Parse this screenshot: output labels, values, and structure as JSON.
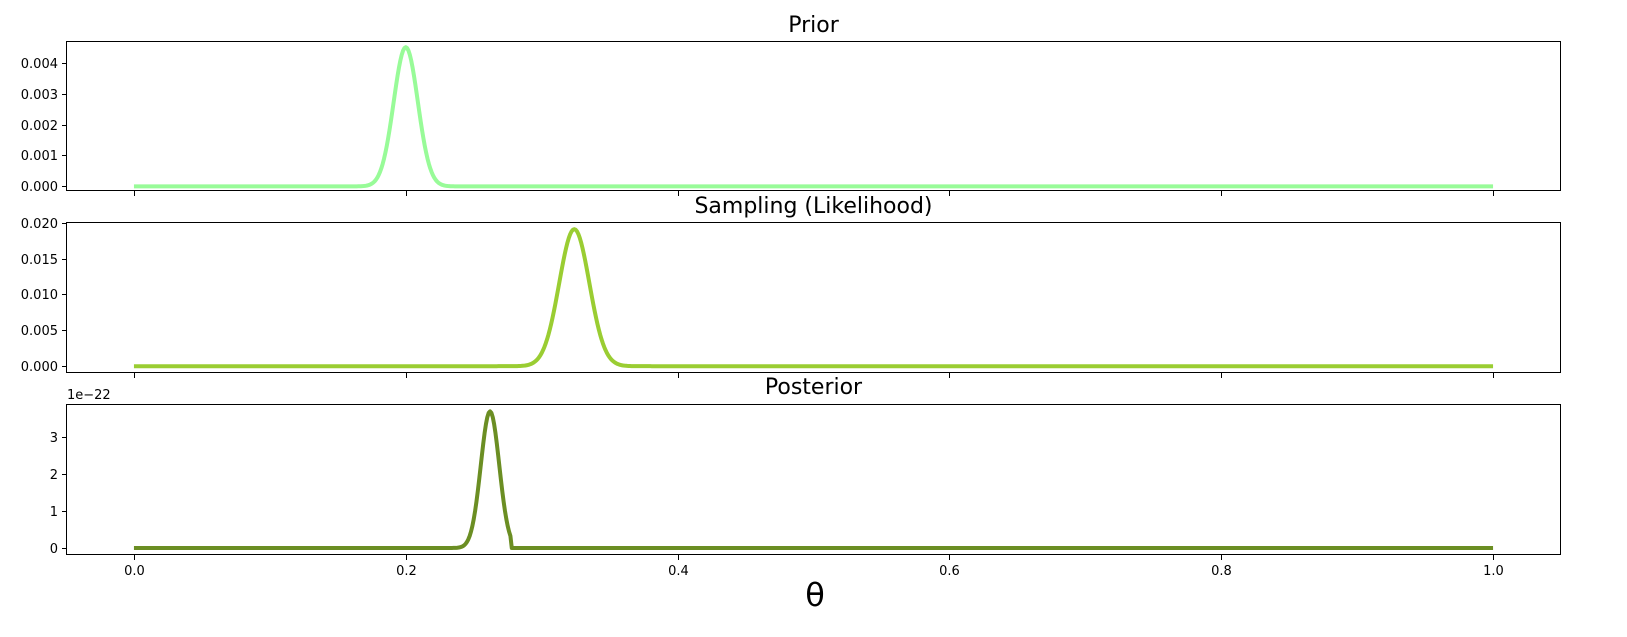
{
  "chart_data": [
    {
      "type": "line",
      "title": "Prior",
      "xlabel": "",
      "ylabel": "",
      "xlim": [
        -0.05,
        1.05
      ],
      "ylim": [
        -0.00015,
        0.0047
      ],
      "xticks": [
        0.0,
        0.2,
        0.4,
        0.6,
        0.8,
        1.0
      ],
      "yticks": [
        0.0,
        0.001,
        0.002,
        0.003,
        0.004
      ],
      "ytick_labels": [
        "0.000",
        "0.001",
        "0.002",
        "0.003",
        "0.004"
      ],
      "show_xtick_labels": false,
      "offset_text": "",
      "color": "#98fb98",
      "series": [
        {
          "name": "prior",
          "shape": "gaussian",
          "x_range": [
            0.0,
            1.0
          ],
          "peak_x": 0.2,
          "peak_y": 0.0045,
          "sigma": 0.0089
        }
      ]
    },
    {
      "type": "line",
      "title": "Sampling (Likelihood)",
      "xlabel": "",
      "ylabel": "",
      "xlim": [
        -0.05,
        1.05
      ],
      "ylim": [
        -0.00095,
        0.0201
      ],
      "xticks": [
        0.0,
        0.2,
        0.4,
        0.6,
        0.8,
        1.0
      ],
      "yticks": [
        0.0,
        0.005,
        0.01,
        0.015,
        0.02
      ],
      "ytick_labels": [
        "0.000",
        "0.005",
        "0.010",
        "0.015",
        "0.020"
      ],
      "show_xtick_labels": false,
      "offset_text": "",
      "color": "#9acd32",
      "series": [
        {
          "name": "likelihood",
          "shape": "gaussian",
          "x_range": [
            0.0,
            1.0
          ],
          "peak_x": 0.324,
          "peak_y": 0.0191,
          "sigma": 0.0111
        }
      ]
    },
    {
      "type": "line",
      "title": "Posterior",
      "xlabel": "θ",
      "ylabel": "",
      "xlim": [
        -0.05,
        1.05
      ],
      "ylim": [
        -0.19,
        3.9
      ],
      "xticks": [
        0.0,
        0.2,
        0.4,
        0.6,
        0.8,
        1.0
      ],
      "xtick_labels": [
        "0.0",
        "0.2",
        "0.4",
        "0.6",
        "0.8",
        "1.0"
      ],
      "yticks": [
        0,
        1,
        2,
        3
      ],
      "ytick_labels": [
        "0",
        "1",
        "2",
        "3"
      ],
      "show_xtick_labels": true,
      "offset_text": "1e−22",
      "color": "#6b8e23",
      "series": [
        {
          "name": "posterior",
          "shape": "truncated-gaussian",
          "x_range": [
            0.0,
            1.0
          ],
          "peak_x": 0.262,
          "peak_y": 3.7,
          "sigma": 0.0068,
          "cutoff_x": 0.2775
        }
      ]
    }
  ]
}
